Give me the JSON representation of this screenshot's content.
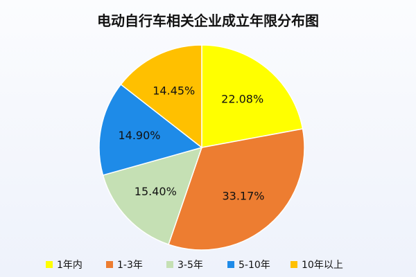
{
  "chart_data": {
    "type": "pie",
    "title": "电动自行车相关企业成立年限分布图",
    "categories": [
      "1年内",
      "1-3年",
      "3-5年",
      "5-10年",
      "10年以上"
    ],
    "values": [
      22.08,
      33.17,
      15.4,
      14.9,
      14.45
    ],
    "labels": [
      "22.08%",
      "33.17%",
      "15.40%",
      "14.90%",
      "14.45%"
    ],
    "colors": [
      "#FFFF00",
      "#ED7D31",
      "#C5E0B4",
      "#1E8BE8",
      "#FFC000"
    ],
    "legend": "bottom",
    "start": "top, clockwise"
  }
}
